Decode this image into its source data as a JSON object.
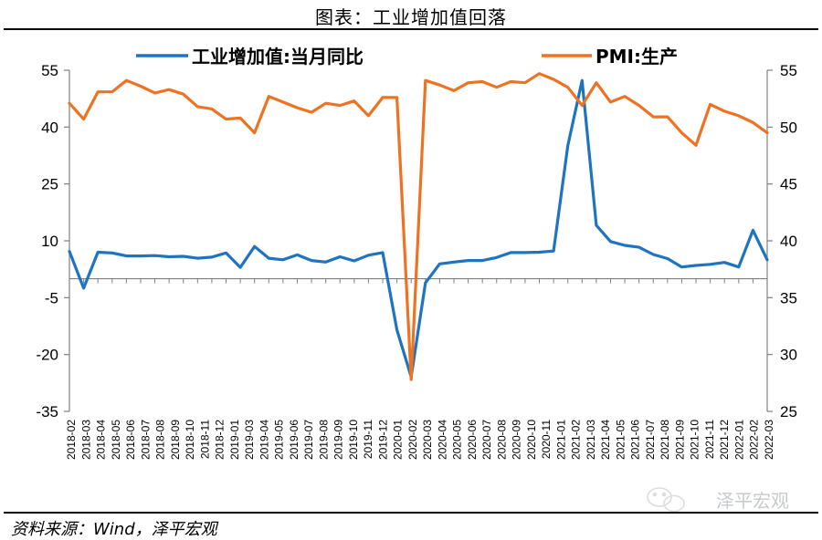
{
  "header": {
    "title": "图表：工业增加值回落"
  },
  "footer": {
    "source": "资料来源：Wind，泽平宏观"
  },
  "watermark": {
    "text": "泽平宏观",
    "icon": "wechat-icon"
  },
  "colors": {
    "series1": "#1f74c1",
    "series2": "#ed7323",
    "axis": "#808080"
  },
  "chart_data": {
    "type": "line",
    "title": "",
    "xlabel": "",
    "ylabel": "",
    "legend_position": "top",
    "grid": false,
    "left_axis": {
      "min": -35,
      "max": 55,
      "ticks": [
        "55",
        "40",
        "25",
        "10",
        "-5",
        "-20",
        "-35"
      ]
    },
    "right_axis": {
      "min": 25,
      "max": 55,
      "ticks": [
        "55",
        "50",
        "45",
        "40",
        "35",
        "30",
        "25"
      ]
    },
    "x": [
      "2018-02",
      "2018-03",
      "2018-04",
      "2018-05",
      "2018-06",
      "2018-07",
      "2018-08",
      "2018-09",
      "2018-10",
      "2018-11",
      "2018-12",
      "2019-01",
      "2019-02",
      "2019-03",
      "2019-04",
      "2019-05",
      "2019-06",
      "2019-07",
      "2019-08",
      "2019-09",
      "2019-10",
      "2019-11",
      "2019-12",
      "2020-01",
      "2020-02",
      "2020-03",
      "2020-04",
      "2020-05",
      "2020-06",
      "2020-07",
      "2020-08",
      "2020-09",
      "2020-10",
      "2020-11",
      "2020-12",
      "2021-01",
      "2021-02",
      "2021-03",
      "2021-04",
      "2021-05",
      "2021-06",
      "2021-07",
      "2021-08",
      "2021-09",
      "2021-10",
      "2021-11",
      "2021-12",
      "2022-01",
      "2022-02",
      "2022-03"
    ],
    "x_tick_labels": [
      "2018-02",
      "2018-03",
      "2018-04",
      "2018-05",
      "2018-06",
      "2018-07",
      "2018-08",
      "2018-09",
      "2018-10",
      "2018-11",
      "2018-12",
      "2019-01",
      "2019-03",
      "2019-04",
      "2019-05",
      "2019-06",
      "2019-07",
      "2019-08",
      "2019-09",
      "2019-10",
      "2019-11",
      "2019-12",
      "2020-01",
      "2020-02",
      "2020-03",
      "2020-04",
      "2020-05",
      "2020-06",
      "2020-07",
      "2020-08",
      "2020-09",
      "2020-10",
      "2020-11",
      "2021-01",
      "2021-02",
      "2021-03",
      "2021-04",
      "2021-05",
      "2021-06",
      "2021-07",
      "2021-08",
      "2021-09",
      "2021-10",
      "2021-11",
      "2021-12",
      "2022-01",
      "2022-02",
      "2022-03"
    ],
    "series": [
      {
        "name": "工业增加值:当月同比",
        "axis": "left",
        "values": [
          7.2,
          -2.5,
          7,
          6.8,
          6,
          6,
          6.1,
          5.8,
          5.9,
          5.4,
          5.7,
          6.8,
          3,
          8.5,
          5.4,
          5,
          6.3,
          4.8,
          4.4,
          5.8,
          4.7,
          6.2,
          6.9,
          -13.5,
          -25.9,
          -1.1,
          3.9,
          4.4,
          4.8,
          4.8,
          5.6,
          6.9,
          6.9,
          7,
          7.3,
          35.1,
          52.3,
          14.1,
          9.8,
          8.8,
          8.3,
          6.4,
          5.3,
          3.1,
          3.5,
          3.8,
          4.3,
          3.1,
          12.8,
          5
        ]
      },
      {
        "name": "PMI:生产",
        "axis": "right",
        "values": [
          52.1,
          50.7,
          53.1,
          53.1,
          54.1,
          53.6,
          53,
          53.3,
          52.9,
          51.8,
          51.6,
          50.7,
          50.8,
          49.5,
          52.7,
          52.2,
          51.7,
          51.3,
          52.1,
          51.9,
          52.3,
          51,
          52.6,
          52.6,
          27.8,
          54.1,
          53.7,
          53.2,
          53.9,
          54,
          53.5,
          54,
          53.9,
          54.7,
          54.2,
          53.5,
          51.9,
          53.9,
          52.2,
          52.7,
          51.9,
          50.9,
          50.9,
          49.5,
          48.4,
          52,
          51.4,
          51,
          50.4,
          49.5
        ]
      }
    ]
  }
}
